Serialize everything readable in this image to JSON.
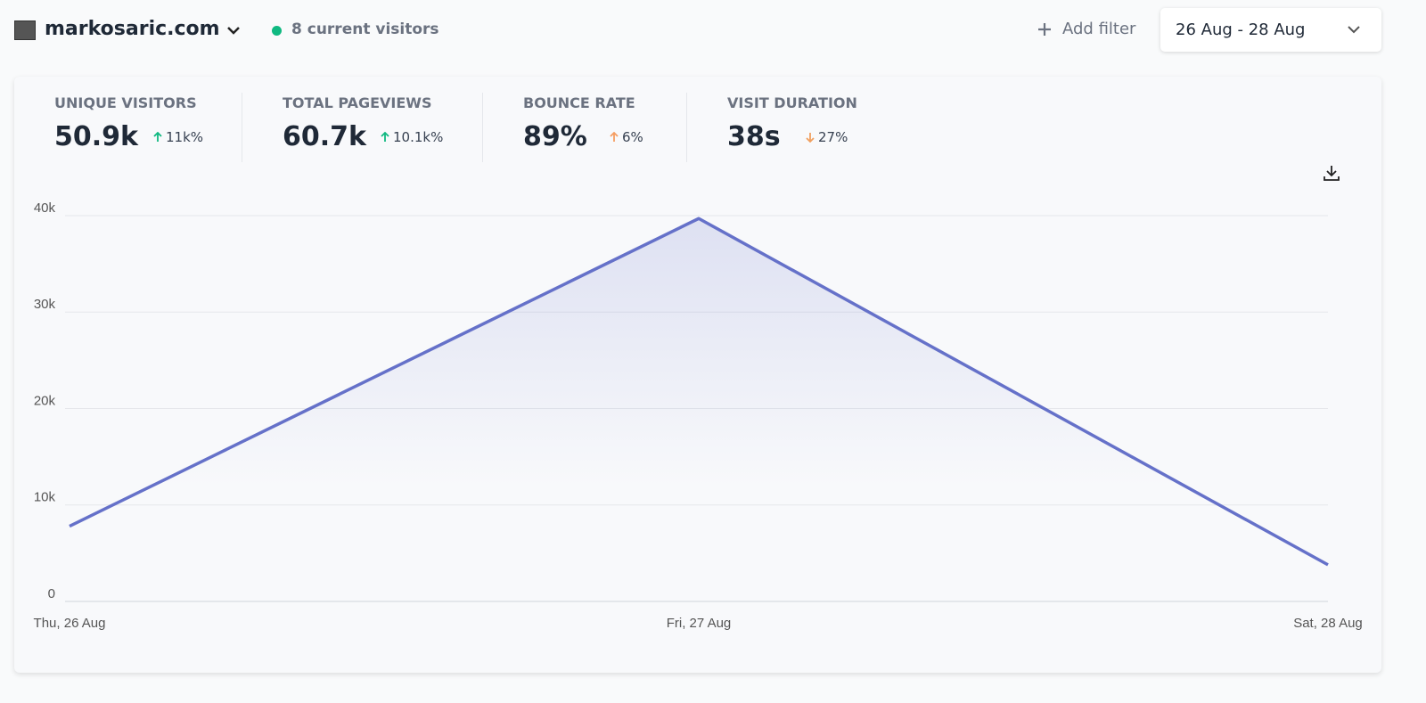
{
  "header": {
    "site": "markosaric.com",
    "visitors": "8 current visitors",
    "filter": "Add filter",
    "date_range": "26 Aug - 28 Aug"
  },
  "stats": [
    {
      "label": "UNIQUE VISITORS",
      "value": "50.9k",
      "change": "11k%"
    },
    {
      "label": "TOTAL PAGEVIEWS",
      "value": "60.7k",
      "change": "10.1k%"
    },
    {
      "label": "BOUNCE RATE",
      "value": "89%",
      "change": "6%"
    },
    {
      "label": "VISIT DURATION",
      "value": "38s",
      "change": "27%"
    }
  ],
  "chart_data": {
    "type": "line",
    "categories": [
      "Thu, 26 Aug",
      "Fri, 27 Aug",
      "Sat, 28 Aug"
    ],
    "values": [
      7800,
      39700,
      3800
    ],
    "color": "#6571c9",
    "ylim": [
      0,
      40000
    ],
    "yticks": [
      0,
      {
        "value": 10000,
        "label": "10k"
      },
      {
        "value": 20000,
        "label": "20k"
      },
      {
        "value": 30000,
        "label": "30k"
      },
      {
        "value": 40000,
        "label": "40k"
      }
    ],
    "grid": true
  }
}
